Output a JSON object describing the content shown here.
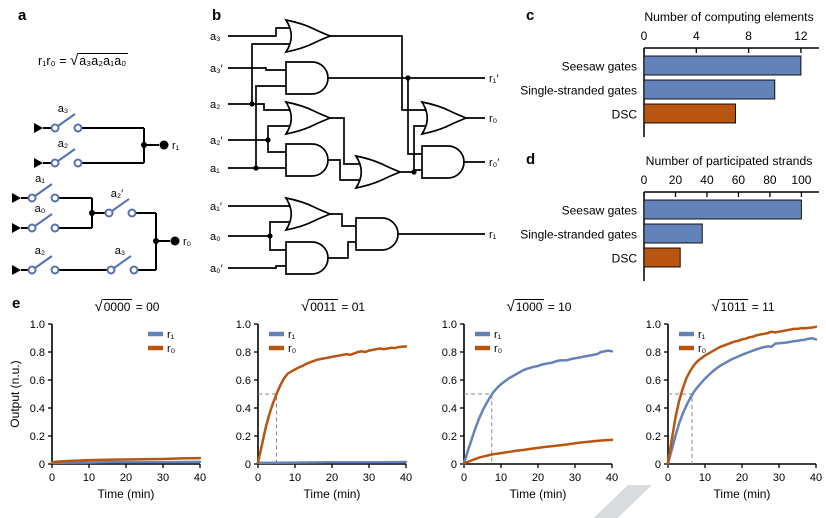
{
  "symbols": {
    "sqrt": "√",
    "equals": " = "
  },
  "colors": {
    "blue": "#6383b8",
    "orange": "#b85511",
    "dash": "#8a8a8a"
  },
  "panels": {
    "a": {
      "label": "a",
      "formula": {
        "lhs": "r₁r₀ = ",
        "sqrt": "√",
        "radicand": "a₃a₂a₁a₀"
      },
      "switch_labels": {
        "top1": "a₃",
        "top2": "a₂",
        "mid1": "a₁",
        "mid2": "a₀",
        "mid_series": "a₂′",
        "bot1": "a₂",
        "bot2": "a₃"
      },
      "outputs": {
        "r1": "r₁",
        "r0": "r₀"
      }
    },
    "b": {
      "label": "b",
      "inputs": [
        "a₃",
        "a₃′",
        "a₂",
        "a₂′",
        "a₁",
        "a₁′",
        "a₀",
        "a₀′"
      ],
      "outputs": [
        "r₁′",
        "r₀",
        "r₀′",
        "r₁"
      ]
    },
    "c": {
      "label": "c"
    },
    "d": {
      "label": "d"
    },
    "e": {
      "label": "e"
    }
  },
  "chart_data": [
    {
      "panel": "c",
      "type": "bar",
      "orientation": "horizontal",
      "title": "Number of computing elements",
      "categories": [
        "Seesaw gates",
        "Single-stranded gates",
        "DSC"
      ],
      "values": [
        12,
        10,
        7
      ],
      "colors": [
        "#6383b8",
        "#6383b8",
        "#b85511"
      ],
      "xticks": [
        0,
        4,
        8,
        12
      ],
      "xlim": [
        0,
        13
      ]
    },
    {
      "panel": "d",
      "type": "bar",
      "orientation": "horizontal",
      "title": "Number of participated strands",
      "categories": [
        "Seesaw gates",
        "Single-stranded gates",
        "DSC"
      ],
      "values": [
        100,
        37,
        23
      ],
      "colors": [
        "#6383b8",
        "#6383b8",
        "#b85511"
      ],
      "xticks": [
        0,
        20,
        40,
        60,
        80,
        100
      ],
      "xlim": [
        0,
        108
      ]
    },
    {
      "panel": "e",
      "type": "line",
      "xlabel": "Time (min)",
      "ylabel": "Output (n.u.)",
      "xlim": [
        0,
        40
      ],
      "ylim": [
        0,
        1
      ],
      "xticks": [
        0,
        10,
        20,
        30,
        40
      ],
      "yticks": [
        0,
        0.2,
        0.4,
        0.6,
        0.8,
        1
      ],
      "legend": [
        "r₁",
        "r₀"
      ],
      "colors": {
        "r1": "#6383b8",
        "r0": "#b85511"
      },
      "plots": [
        {
          "radicand": "0000",
          "result": "00",
          "legend_pos": "right",
          "half_x": null,
          "series": {
            "r1": [
              [
                0,
                0.008
              ],
              [
                5,
                0.01
              ],
              [
                10,
                0.01
              ],
              [
                15,
                0.012
              ],
              [
                20,
                0.012
              ],
              [
                25,
                0.013
              ],
              [
                30,
                0.013
              ],
              [
                35,
                0.014
              ],
              [
                40,
                0.015
              ]
            ],
            "r0": [
              [
                0,
                0.012
              ],
              [
                2,
                0.018
              ],
              [
                5,
                0.022
              ],
              [
                10,
                0.028
              ],
              [
                15,
                0.03
              ],
              [
                20,
                0.032
              ],
              [
                25,
                0.034
              ],
              [
                30,
                0.036
              ],
              [
                35,
                0.04
              ],
              [
                40,
                0.042
              ]
            ]
          }
        },
        {
          "radicand": "0011",
          "result": "01",
          "legend_pos": "left",
          "half_x": 5,
          "series": {
            "r1": [
              [
                0,
                0.008
              ],
              [
                10,
                0.01
              ],
              [
                20,
                0.012
              ],
              [
                30,
                0.012
              ],
              [
                40,
                0.014
              ]
            ],
            "r0": [
              [
                0,
                0.01
              ],
              [
                1,
                0.13
              ],
              [
                2,
                0.25
              ],
              [
                3,
                0.35
              ],
              [
                4,
                0.43
              ],
              [
                5,
                0.5
              ],
              [
                6,
                0.56
              ],
              [
                7,
                0.61
              ],
              [
                8,
                0.645
              ],
              [
                9,
                0.66
              ],
              [
                10,
                0.675
              ],
              [
                11,
                0.69
              ],
              [
                12,
                0.7
              ],
              [
                13,
                0.715
              ],
              [
                14,
                0.725
              ],
              [
                15,
                0.735
              ],
              [
                16,
                0.745
              ],
              [
                17,
                0.75
              ],
              [
                18,
                0.755
              ],
              [
                19,
                0.76
              ],
              [
                20,
                0.765
              ],
              [
                21,
                0.77
              ],
              [
                22,
                0.775
              ],
              [
                23,
                0.78
              ],
              [
                24,
                0.785
              ],
              [
                25,
                0.78
              ],
              [
                26,
                0.79
              ],
              [
                27,
                0.8
              ],
              [
                28,
                0.805
              ],
              [
                29,
                0.8
              ],
              [
                30,
                0.81
              ],
              [
                31,
                0.815
              ],
              [
                32,
                0.82
              ],
              [
                33,
                0.825
              ],
              [
                34,
                0.82
              ],
              [
                35,
                0.825
              ],
              [
                36,
                0.83
              ],
              [
                37,
                0.828
              ],
              [
                38,
                0.835
              ],
              [
                39,
                0.838
              ],
              [
                40,
                0.84
              ]
            ]
          }
        },
        {
          "radicand": "1000",
          "result": "10",
          "legend_pos": "left",
          "half_x": 7.5,
          "series": {
            "r1": [
              [
                0,
                0.005
              ],
              [
                1,
                0.09
              ],
              [
                2,
                0.17
              ],
              [
                3,
                0.25
              ],
              [
                4,
                0.32
              ],
              [
                5,
                0.38
              ],
              [
                6,
                0.43
              ],
              [
                7,
                0.475
              ],
              [
                8,
                0.515
              ],
              [
                9,
                0.545
              ],
              [
                10,
                0.57
              ],
              [
                11,
                0.59
              ],
              [
                12,
                0.61
              ],
              [
                13,
                0.625
              ],
              [
                14,
                0.64
              ],
              [
                15,
                0.655
              ],
              [
                16,
                0.67
              ],
              [
                17,
                0.68
              ],
              [
                18,
                0.688
              ],
              [
                19,
                0.695
              ],
              [
                20,
                0.7
              ],
              [
                21,
                0.71
              ],
              [
                22,
                0.715
              ],
              [
                23,
                0.72
              ],
              [
                24,
                0.725
              ],
              [
                25,
                0.735
              ],
              [
                26,
                0.74
              ],
              [
                27,
                0.74
              ],
              [
                28,
                0.742
              ],
              [
                29,
                0.75
              ],
              [
                30,
                0.755
              ],
              [
                31,
                0.76
              ],
              [
                32,
                0.765
              ],
              [
                33,
                0.77
              ],
              [
                34,
                0.775
              ],
              [
                35,
                0.78
              ],
              [
                36,
                0.785
              ],
              [
                37,
                0.8
              ],
              [
                38,
                0.805
              ],
              [
                39,
                0.81
              ],
              [
                40,
                0.805
              ]
            ],
            "r0": [
              [
                0,
                0.005
              ],
              [
                1,
                0.015
              ],
              [
                2,
                0.025
              ],
              [
                3,
                0.035
              ],
              [
                4,
                0.045
              ],
              [
                5,
                0.052
              ],
              [
                6,
                0.058
              ],
              [
                7,
                0.064
              ],
              [
                8,
                0.07
              ],
              [
                10,
                0.078
              ],
              [
                12,
                0.086
              ],
              [
                14,
                0.094
              ],
              [
                16,
                0.1
              ],
              [
                18,
                0.108
              ],
              [
                20,
                0.115
              ],
              [
                22,
                0.122
              ],
              [
                24,
                0.128
              ],
              [
                26,
                0.134
              ],
              [
                28,
                0.14
              ],
              [
                30,
                0.148
              ],
              [
                32,
                0.154
              ],
              [
                34,
                0.16
              ],
              [
                36,
                0.165
              ],
              [
                38,
                0.17
              ],
              [
                40,
                0.172
              ]
            ]
          }
        },
        {
          "radicand": "1011",
          "result": "11",
          "legend_pos": "left",
          "half_x": 6.5,
          "series": {
            "r1": [
              [
                0,
                0.005
              ],
              [
                1,
                0.1
              ],
              [
                2,
                0.2
              ],
              [
                3,
                0.29
              ],
              [
                4,
                0.36
              ],
              [
                5,
                0.42
              ],
              [
                6,
                0.47
              ],
              [
                7,
                0.515
              ],
              [
                8,
                0.55
              ],
              [
                9,
                0.58
              ],
              [
                10,
                0.61
              ],
              [
                11,
                0.635
              ],
              [
                12,
                0.66
              ],
              [
                13,
                0.68
              ],
              [
                14,
                0.7
              ],
              [
                15,
                0.715
              ],
              [
                16,
                0.73
              ],
              [
                17,
                0.745
              ],
              [
                18,
                0.757
              ],
              [
                19,
                0.768
              ],
              [
                20,
                0.78
              ],
              [
                21,
                0.79
              ],
              [
                22,
                0.8
              ],
              [
                23,
                0.81
              ],
              [
                24,
                0.82
              ],
              [
                25,
                0.828
              ],
              [
                26,
                0.835
              ],
              [
                27,
                0.84
              ],
              [
                28,
                0.838
              ],
              [
                29,
                0.86
              ],
              [
                30,
                0.862
              ],
              [
                31,
                0.865
              ],
              [
                32,
                0.868
              ],
              [
                33,
                0.872
              ],
              [
                34,
                0.877
              ],
              [
                35,
                0.88
              ],
              [
                36,
                0.885
              ],
              [
                37,
                0.888
              ],
              [
                38,
                0.895
              ],
              [
                39,
                0.898
              ],
              [
                40,
                0.89
              ]
            ],
            "r0": [
              [
                0,
                0.01
              ],
              [
                1,
                0.17
              ],
              [
                2,
                0.33
              ],
              [
                3,
                0.45
              ],
              [
                4,
                0.54
              ],
              [
                5,
                0.615
              ],
              [
                6,
                0.665
              ],
              [
                7,
                0.705
              ],
              [
                8,
                0.735
              ],
              [
                9,
                0.755
              ],
              [
                10,
                0.775
              ],
              [
                11,
                0.79
              ],
              [
                12,
                0.805
              ],
              [
                13,
                0.82
              ],
              [
                14,
                0.835
              ],
              [
                15,
                0.845
              ],
              [
                16,
                0.855
              ],
              [
                17,
                0.865
              ],
              [
                18,
                0.875
              ],
              [
                19,
                0.88
              ],
              [
                20,
                0.89
              ],
              [
                21,
                0.895
              ],
              [
                22,
                0.905
              ],
              [
                23,
                0.91
              ],
              [
                24,
                0.92
              ],
              [
                25,
                0.925
              ],
              [
                26,
                0.93
              ],
              [
                27,
                0.935
              ],
              [
                28,
                0.945
              ],
              [
                29,
                0.94
              ],
              [
                30,
                0.945
              ],
              [
                31,
                0.95
              ],
              [
                32,
                0.955
              ],
              [
                33,
                0.96
              ],
              [
                34,
                0.965
              ],
              [
                35,
                0.965
              ],
              [
                36,
                0.97
              ],
              [
                37,
                0.97
              ],
              [
                38,
                0.972
              ],
              [
                39,
                0.975
              ],
              [
                40,
                0.98
              ]
            ]
          }
        }
      ]
    }
  ]
}
